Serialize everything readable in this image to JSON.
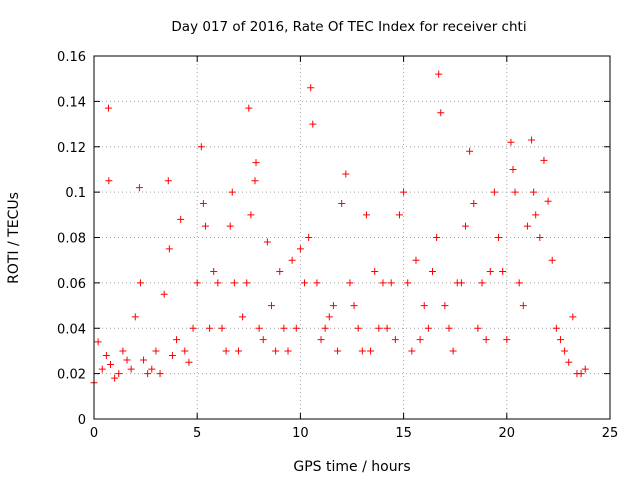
{
  "chart_data": {
    "type": "scatter",
    "title": "Day 017 of 2016, Rate Of TEC Index for receiver chti",
    "xlabel": "GPS time / hours",
    "ylabel": "ROTI / TECUs",
    "xlim": [
      0,
      25
    ],
    "ylim": [
      0,
      0.16
    ],
    "xticks": [
      0,
      5,
      10,
      15,
      20,
      25
    ],
    "yticks": [
      0,
      0.02,
      0.04,
      0.06,
      0.08,
      0.1,
      0.12,
      0.14,
      0.16
    ],
    "xtick_labels": [
      "0",
      "5",
      "10",
      "15",
      "20",
      "25"
    ],
    "ytick_labels": [
      "0",
      "0.02",
      "0.04",
      "0.06",
      "0.08",
      "0.1",
      "0.12",
      "0.14",
      "0.16"
    ],
    "grid": true,
    "marker": "+",
    "marker_color": "#ff0000",
    "series": [
      {
        "name": "ROTI",
        "x": [
          0.0,
          0.2,
          0.4,
          0.6,
          0.7,
          0.72,
          0.8,
          1.0,
          1.2,
          1.4,
          1.6,
          1.8,
          2.0,
          2.2,
          2.25,
          2.4,
          2.6,
          2.8,
          3.0,
          3.2,
          3.4,
          3.6,
          3.65,
          3.8,
          4.0,
          4.2,
          4.4,
          4.6,
          4.8,
          5.0,
          5.2,
          5.3,
          5.4,
          5.6,
          5.8,
          6.0,
          6.2,
          6.4,
          6.6,
          6.7,
          6.8,
          7.0,
          7.2,
          7.4,
          7.5,
          7.6,
          7.8,
          7.85,
          8.0,
          8.2,
          8.4,
          8.6,
          8.8,
          9.0,
          9.2,
          9.4,
          9.6,
          9.8,
          10.0,
          10.2,
          10.4,
          10.5,
          10.6,
          10.8,
          11.0,
          11.2,
          11.4,
          11.6,
          11.8,
          12.0,
          12.2,
          12.4,
          12.6,
          12.8,
          13.0,
          13.2,
          13.4,
          13.6,
          13.8,
          14.0,
          14.2,
          14.4,
          14.6,
          14.8,
          15.0,
          15.2,
          15.4,
          15.6,
          15.8,
          16.0,
          16.2,
          16.4,
          16.6,
          16.7,
          16.8,
          17.0,
          17.2,
          17.4,
          17.6,
          17.8,
          18.0,
          18.2,
          18.4,
          18.6,
          18.8,
          19.0,
          19.2,
          19.4,
          19.6,
          19.8,
          20.0,
          20.2,
          20.3,
          20.4,
          20.6,
          20.8,
          21.0,
          21.2,
          21.3,
          21.4,
          21.6,
          21.8,
          22.0,
          22.2,
          22.4,
          22.6,
          22.8,
          23.0,
          23.2,
          23.4,
          23.6,
          23.8
        ],
        "y": [
          0.016,
          0.034,
          0.022,
          0.028,
          0.137,
          0.105,
          0.024,
          0.018,
          0.02,
          0.03,
          0.026,
          0.022,
          0.045,
          0.102,
          0.06,
          0.026,
          0.02,
          0.022,
          0.03,
          0.02,
          0.055,
          0.105,
          0.075,
          0.028,
          0.035,
          0.088,
          0.03,
          0.025,
          0.04,
          0.06,
          0.12,
          0.095,
          0.085,
          0.04,
          0.065,
          0.06,
          0.04,
          0.03,
          0.085,
          0.1,
          0.06,
          0.03,
          0.045,
          0.06,
          0.137,
          0.09,
          0.105,
          0.113,
          0.04,
          0.035,
          0.078,
          0.05,
          0.03,
          0.065,
          0.04,
          0.03,
          0.07,
          0.04,
          0.075,
          0.06,
          0.08,
          0.146,
          0.13,
          0.06,
          0.035,
          0.04,
          0.045,
          0.05,
          0.03,
          0.095,
          0.108,
          0.06,
          0.05,
          0.04,
          0.03,
          0.09,
          0.03,
          0.065,
          0.04,
          0.06,
          0.04,
          0.06,
          0.035,
          0.09,
          0.1,
          0.06,
          0.03,
          0.07,
          0.035,
          0.05,
          0.04,
          0.065,
          0.08,
          0.152,
          0.135,
          0.05,
          0.04,
          0.03,
          0.06,
          0.06,
          0.085,
          0.118,
          0.095,
          0.04,
          0.06,
          0.035,
          0.065,
          0.1,
          0.08,
          0.065,
          0.035,
          0.122,
          0.11,
          0.1,
          0.06,
          0.05,
          0.085,
          0.123,
          0.1,
          0.09,
          0.08,
          0.114,
          0.096,
          0.07,
          0.04,
          0.035,
          0.03,
          0.025,
          0.045,
          0.02,
          0.02,
          0.022
        ]
      }
    ]
  }
}
